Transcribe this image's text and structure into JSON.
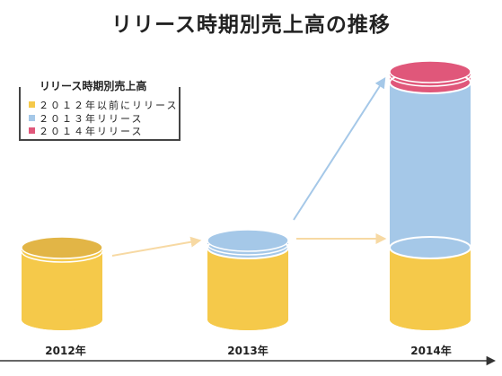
{
  "chart_data": {
    "type": "bar",
    "title": "リリース時期別売上高の推移",
    "legend_title": "リリース時期別売上高",
    "legend_position": "top-left",
    "categories": [
      "2012年",
      "2013年",
      "2014年"
    ],
    "series": [
      {
        "name": "２０１２年以前にリリース",
        "color": "#F5C94A",
        "values": [
          1.0,
          1.0,
          1.0
        ]
      },
      {
        "name": "２０１３年リリース",
        "color": "#A5C8E8",
        "values": [
          0,
          0.1,
          2.3
        ]
      },
      {
        "name": "２０１４年リリース",
        "color": "#E0577A",
        "values": [
          0,
          0,
          0.15
        ]
      }
    ],
    "stacked": true,
    "axis_arrow": true,
    "gridlines": false
  }
}
